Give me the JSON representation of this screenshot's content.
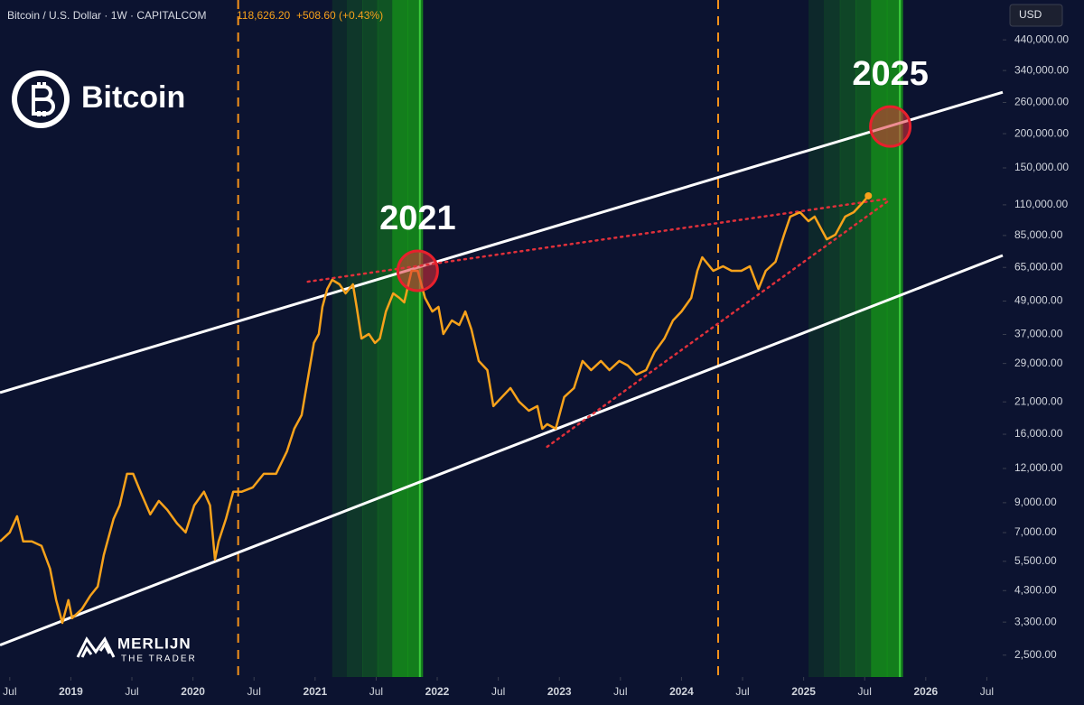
{
  "chart_data": {
    "type": "line",
    "header": {
      "symbol": "Bitcoin / U.S. Dollar · 1W · CAPITALCOM",
      "price": "118,626.20",
      "change": "+508.60 (+0.43%)"
    },
    "currency": "USD",
    "brand": "Bitcoin",
    "watermark": {
      "name": "MERLIJN",
      "tagline": "THE TRADER"
    },
    "color": "#f7a21b",
    "background": "#0c1330",
    "log_scale": true,
    "x": [
      2018.42,
      2018.5,
      2018.56,
      2018.61,
      2018.68,
      2018.76,
      2018.83,
      2018.88,
      2018.93,
      2018.98,
      2019.01,
      2019.09,
      2019.16,
      2019.22,
      2019.27,
      2019.35,
      2019.4,
      2019.46,
      2019.51,
      2019.57,
      2019.65,
      2019.72,
      2019.79,
      2019.87,
      2019.94,
      2020.01,
      2020.09,
      2020.14,
      2020.18,
      2020.21,
      2020.27,
      2020.33,
      2020.4,
      2020.49,
      2020.58,
      2020.68,
      2020.77,
      2020.83,
      2020.89,
      2020.94,
      2020.99,
      2021.03,
      2021.06,
      2021.1,
      2021.14,
      2021.2,
      2021.25,
      2021.31,
      2021.34,
      2021.38,
      2021.44,
      2021.49,
      2021.53,
      2021.58,
      2021.64,
      2021.69,
      2021.73,
      2021.79,
      2021.84,
      2021.9,
      2021.96,
      2022.01,
      2022.05,
      2022.12,
      2022.18,
      2022.23,
      2022.28,
      2022.34,
      2022.41,
      2022.46,
      2022.53,
      2022.6,
      2022.67,
      2022.75,
      2022.82,
      2022.86,
      2022.9,
      2022.97,
      2023.04,
      2023.12,
      2023.19,
      2023.26,
      2023.34,
      2023.41,
      2023.49,
      2023.56,
      2023.63,
      2023.71,
      2023.78,
      2023.86,
      2023.93,
      2024.0,
      2024.08,
      2024.13,
      2024.17,
      2024.26,
      2024.34,
      2024.41,
      2024.49,
      2024.56,
      2024.63,
      2024.69,
      2024.77,
      2024.84,
      2024.89,
      2024.97,
      2025.04,
      2025.09,
      2025.15,
      2025.19,
      2025.26,
      2025.34,
      2025.41,
      2025.48,
      2025.53
    ],
    "values": [
      6500,
      7010,
      8030,
      6500,
      6500,
      6260,
      5170,
      3970,
      3280,
      3970,
      3410,
      3680,
      4120,
      4450,
      5800,
      7850,
      8800,
      11470,
      11470,
      9870,
      8160,
      9140,
      8470,
      7560,
      7010,
      8800,
      9870,
      8800,
      5580,
      6500,
      7850,
      9870,
      9870,
      10240,
      11470,
      11470,
      13870,
      16760,
      18780,
      25430,
      34470,
      37150,
      46650,
      54250,
      58560,
      56370,
      52270,
      56370,
      46650,
      35770,
      37150,
      34470,
      35770,
      44880,
      52270,
      50330,
      48440,
      63180,
      63180,
      50330,
      44880,
      46650,
      37150,
      41610,
      40080,
      44880,
      38590,
      29600,
      27430,
      20270,
      21880,
      23580,
      21040,
      19500,
      20270,
      16760,
      17410,
      16760,
      21880,
      23580,
      29600,
      27430,
      29600,
      27430,
      29600,
      28510,
      26410,
      27430,
      31950,
      35770,
      41610,
      44880,
      50330,
      63180,
      70800,
      63180,
      65600,
      63180,
      63180,
      65600,
      54250,
      63180,
      68160,
      85540,
      99570,
      103400,
      95880,
      99570,
      88840,
      82350,
      85540,
      99570,
      103400,
      111600,
      118626
    ],
    "xlim": [
      2018.42,
      2026.63
    ],
    "ylim": [
      2080,
      615000
    ],
    "xticks": [
      {
        "value": 2018.5,
        "label": "Jul"
      },
      2019,
      {
        "value": 2019.5,
        "label": "Jul"
      },
      2020,
      {
        "value": 2020.5,
        "label": "Jul"
      },
      2021,
      {
        "value": 2021.5,
        "label": "Jul"
      },
      2022,
      {
        "value": 2022.5,
        "label": "Jul"
      },
      2023,
      {
        "value": 2023.5,
        "label": "Jul"
      },
      2024,
      {
        "value": 2024.5,
        "label": "Jul"
      },
      2025,
      {
        "value": 2025.5,
        "label": "Jul"
      },
      2026,
      {
        "value": 2026.5,
        "label": "Jul"
      }
    ],
    "yticks": [
      {
        "value": 440000,
        "label": "440,000.00"
      },
      {
        "value": 340000,
        "label": "340,000.00"
      },
      {
        "value": 260000,
        "label": "260,000.00"
      },
      {
        "value": 200000,
        "label": "200,000.00"
      },
      {
        "value": 150000,
        "label": "150,000.00"
      },
      {
        "value": 110000,
        "label": "110,000.00"
      },
      {
        "value": 85000,
        "label": "85,000.00"
      },
      {
        "value": 65000,
        "label": "65,000.00"
      },
      {
        "value": 49000,
        "label": "49,000.00"
      },
      {
        "value": 37000,
        "label": "37,000.00"
      },
      {
        "value": 29000,
        "label": "29,000.00"
      },
      {
        "value": 21000,
        "label": "21,000.00"
      },
      {
        "value": 16000,
        "label": "16,000.00"
      },
      {
        "value": 12000,
        "label": "12,000.00"
      },
      {
        "value": 9000,
        "label": "9,000.00"
      },
      {
        "value": 7000,
        "label": "7,000.00"
      },
      {
        "value": 5500,
        "label": "5,500.00"
      },
      {
        "value": 4300,
        "label": "4,300.00"
      },
      {
        "value": 3300,
        "label": "3,300.00"
      },
      {
        "value": 2500,
        "label": "2,500.00"
      }
    ],
    "trendlines": [
      {
        "x": [
          2018.42,
          2026.63
        ],
        "values": [
          22700,
          283400
        ],
        "color": "#ffffff",
        "style": "solid"
      },
      {
        "x": [
          2018.42,
          2026.63
        ],
        "values": [
          2720,
          71850
        ],
        "color": "#ffffff",
        "style": "solid"
      },
      {
        "x": [
          2020.94,
          2025.7
        ],
        "values": [
          57650,
          115900
        ],
        "color": "#e0303a",
        "style": "dotted"
      },
      {
        "x": [
          2022.9,
          2025.7
        ],
        "values": [
          14400,
          114200
        ],
        "color": "#e0303a",
        "style": "dotted"
      }
    ],
    "vlines": [
      2020.37,
      2024.3
    ],
    "bands": [
      [
        2021.14,
        2021.88
      ],
      [
        2025.04,
        2025.81
      ]
    ],
    "markers": [
      {
        "x": 2021.84,
        "value": 63180,
        "label": "2021"
      },
      {
        "x": 2025.71,
        "value": 212500,
        "label": "2025"
      }
    ]
  }
}
